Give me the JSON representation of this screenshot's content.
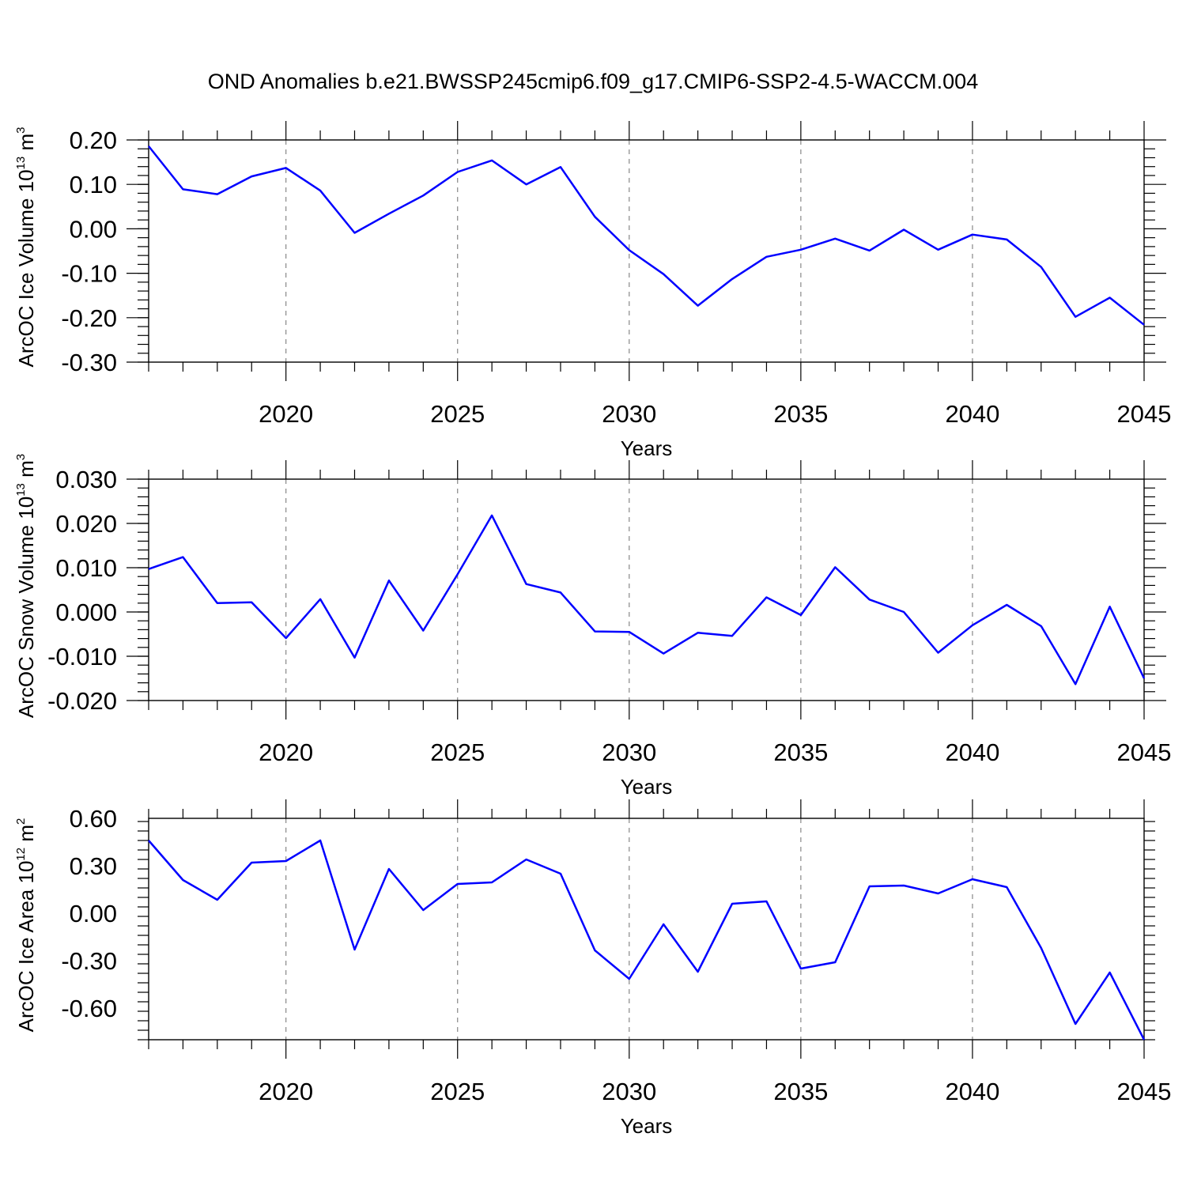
{
  "title": "OND Anomalies b.e21.BWSSP245cmip6.f09_g17.CMIP6-SSP2-4.5-WACCM.004",
  "colors": {
    "line": "#0000ff",
    "axis": "#000000",
    "grid": "#888888"
  },
  "chart_data": [
    {
      "type": "line",
      "ylabel": {
        "main": "ArcOC Ice Volume 10",
        "sup": "13",
        "unit": " m",
        "unit_sup": "3"
      },
      "xlabel": "Years",
      "xlim": [
        2016,
        2045
      ],
      "ylim": [
        -0.3,
        0.2
      ],
      "yticks": [
        0.2,
        0.1,
        0.0,
        -0.1,
        -0.2,
        -0.3
      ],
      "ytick_labels": [
        "0.20",
        "0.10",
        "0.00",
        "-0.10",
        "-0.20",
        "-0.30"
      ],
      "xticks": [
        2020,
        2025,
        2030,
        2035,
        2040,
        2045
      ],
      "xtick_labels": [
        "2020",
        "2025",
        "2030",
        "2035",
        "2040",
        "2045"
      ],
      "grid": "vertical dashed at major x ticks",
      "x": [
        2016,
        2017,
        2018,
        2019,
        2020,
        2021,
        2022,
        2023,
        2024,
        2025,
        2026,
        2027,
        2028,
        2029,
        2030,
        2031,
        2032,
        2033,
        2034,
        2035,
        2036,
        2037,
        2038,
        2039,
        2040,
        2041,
        2042,
        2043,
        2044,
        2045
      ],
      "values": [
        0.186,
        0.089,
        0.078,
        0.118,
        0.137,
        0.086,
        -0.009,
        0.034,
        0.075,
        0.128,
        0.154,
        0.1,
        0.139,
        0.027,
        -0.048,
        -0.102,
        -0.173,
        -0.113,
        -0.063,
        -0.047,
        -0.022,
        -0.049,
        -0.002,
        -0.047,
        -0.013,
        -0.024,
        -0.086,
        -0.198,
        -0.155,
        -0.216
      ]
    },
    {
      "type": "line",
      "ylabel": {
        "main": "ArcOC Snow Volume 10",
        "sup": "13",
        "unit": " m",
        "unit_sup": "3"
      },
      "xlabel": "Years",
      "xlim": [
        2016,
        2045
      ],
      "ylim": [
        -0.02,
        0.03
      ],
      "yticks": [
        0.03,
        0.02,
        0.01,
        0.0,
        -0.01,
        -0.02
      ],
      "ytick_labels": [
        "0.030",
        "0.020",
        "0.010",
        "0.000",
        "-0.010",
        "-0.020"
      ],
      "xticks": [
        2020,
        2025,
        2030,
        2035,
        2040,
        2045
      ],
      "xtick_labels": [
        "2020",
        "2025",
        "2030",
        "2035",
        "2040",
        "2045"
      ],
      "grid": "vertical dashed at major x ticks",
      "x": [
        2016,
        2017,
        2018,
        2019,
        2020,
        2021,
        2022,
        2023,
        2024,
        2025,
        2026,
        2027,
        2028,
        2029,
        2030,
        2031,
        2032,
        2033,
        2034,
        2035,
        2036,
        2037,
        2038,
        2039,
        2040,
        2041,
        2042,
        2043,
        2044,
        2045
      ],
      "values": [
        0.0097,
        0.0124,
        0.002,
        0.0022,
        -0.0059,
        0.0029,
        -0.0103,
        0.0071,
        -0.0042,
        0.0085,
        0.0218,
        0.0063,
        0.0044,
        -0.0044,
        -0.0045,
        -0.0094,
        -0.0047,
        -0.0054,
        0.0033,
        -0.0007,
        0.0101,
        0.0028,
        0.0,
        -0.0092,
        -0.003,
        0.0016,
        -0.0032,
        -0.0163,
        0.0012,
        -0.015
      ]
    },
    {
      "type": "line",
      "ylabel": {
        "main": "ArcOC Ice Area 10",
        "sup": "12",
        "unit": " m",
        "unit_sup": "2"
      },
      "xlabel": "Years",
      "xlim": [
        2016,
        2045
      ],
      "ylim": [
        -0.8,
        0.6
      ],
      "yticks": [
        0.6,
        0.3,
        0.0,
        -0.3,
        -0.6
      ],
      "ytick_labels": [
        "0.60",
        "0.30",
        "0.00",
        "-0.30",
        "-0.60"
      ],
      "xticks": [
        2020,
        2025,
        2030,
        2035,
        2040,
        2045
      ],
      "xtick_labels": [
        "2020",
        "2025",
        "2030",
        "2035",
        "2040",
        "2045"
      ],
      "grid": "vertical dashed at major x ticks",
      "x": [
        2016,
        2017,
        2018,
        2019,
        2020,
        2021,
        2022,
        2023,
        2024,
        2025,
        2026,
        2027,
        2028,
        2029,
        2030,
        2031,
        2032,
        2033,
        2034,
        2035,
        2036,
        2037,
        2038,
        2039,
        2040,
        2041,
        2042,
        2043,
        2044,
        2045
      ],
      "values": [
        0.46,
        0.21,
        0.085,
        0.32,
        0.33,
        0.46,
        -0.23,
        0.28,
        0.02,
        0.185,
        0.195,
        0.34,
        0.25,
        -0.235,
        -0.415,
        -0.07,
        -0.37,
        0.06,
        0.075,
        -0.35,
        -0.31,
        0.17,
        0.175,
        0.125,
        0.215,
        0.165,
        -0.22,
        -0.7,
        -0.375,
        -0.8
      ]
    }
  ]
}
